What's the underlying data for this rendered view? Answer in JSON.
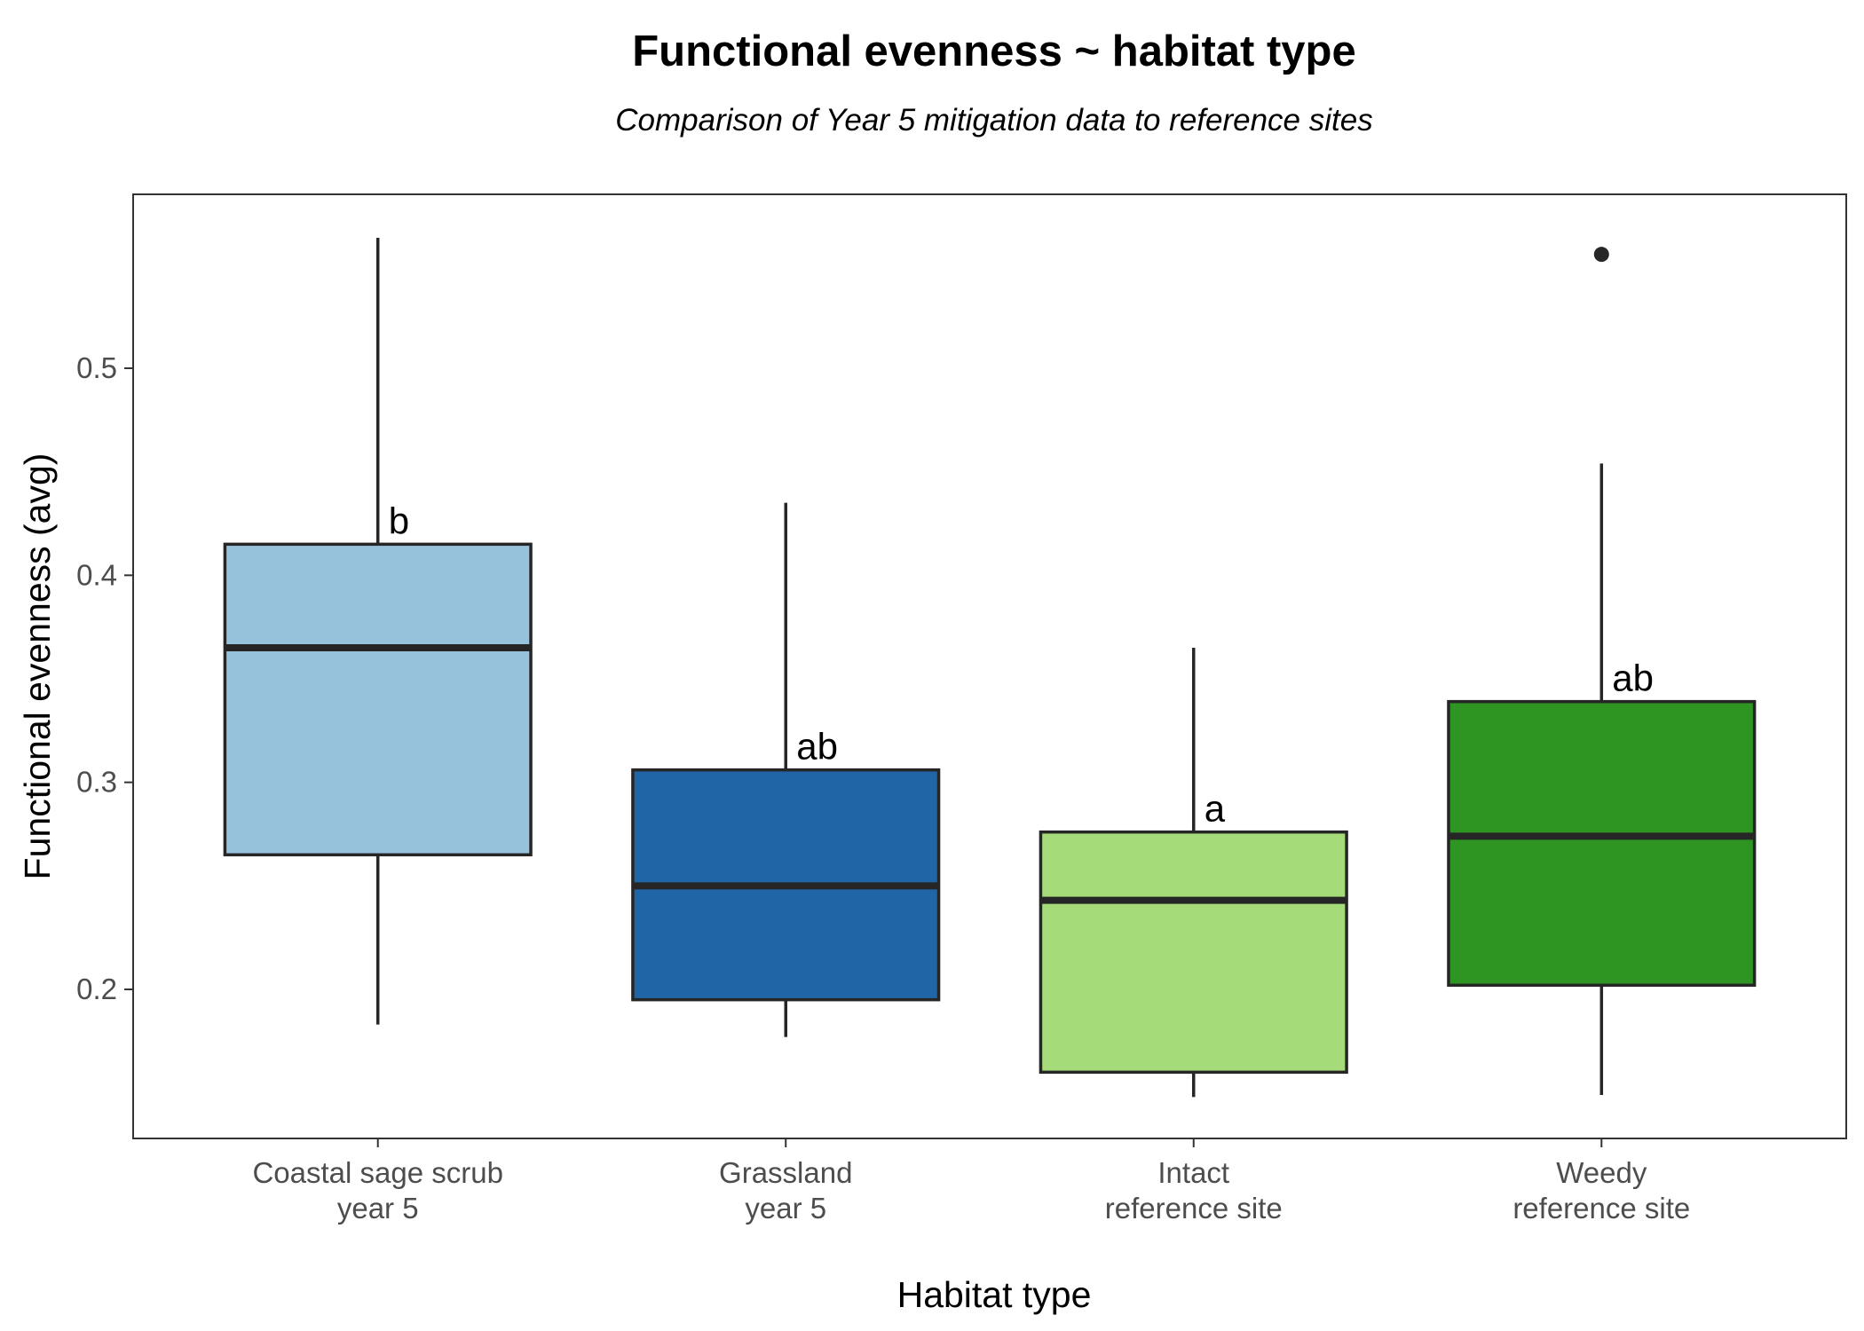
{
  "title": "Functional evenness ~ habitat type",
  "subtitle": "Comparison of Year 5 mitigation data to reference sites",
  "chart_data": {
    "type": "box",
    "xlabel": "Habitat type",
    "ylabel": "Functional evenness (avg)",
    "ylim": [
      0.128,
      0.584
    ],
    "yticks": [
      0.2,
      0.3,
      0.4,
      0.5
    ],
    "grid": false,
    "categories": [
      [
        "Coastal sage scrub",
        "year 5"
      ],
      [
        "Grassland",
        "year 5"
      ],
      [
        "Intact",
        "reference site"
      ],
      [
        "Weedy",
        "reference site"
      ]
    ],
    "boxes": [
      {
        "whisker_low": 0.183,
        "q1": 0.265,
        "median": 0.365,
        "q3": 0.415,
        "whisker_high": 0.563,
        "outliers": [],
        "letter": "b",
        "color": "#97c2dc"
      },
      {
        "whisker_low": 0.177,
        "q1": 0.195,
        "median": 0.25,
        "q3": 0.306,
        "whisker_high": 0.435,
        "outliers": [],
        "letter": "ab",
        "color": "#2065a6"
      },
      {
        "whisker_low": 0.148,
        "q1": 0.16,
        "median": 0.243,
        "q3": 0.276,
        "whisker_high": 0.365,
        "outliers": [],
        "letter": "a",
        "color": "#a5db79"
      },
      {
        "whisker_low": 0.149,
        "q1": 0.202,
        "median": 0.274,
        "q3": 0.339,
        "whisker_high": 0.454,
        "outliers": [
          0.555
        ],
        "letter": "ab",
        "color": "#2e9422"
      }
    ]
  }
}
